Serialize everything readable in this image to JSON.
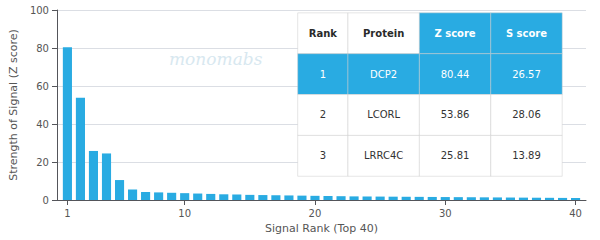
{
  "chart_data": {
    "type": "bar",
    "xlabel": "Signal Rank (Top 40)",
    "ylabel": "Strength of Signal (Z score)",
    "x": [
      1,
      2,
      3,
      4,
      5,
      6,
      7,
      8,
      9,
      10,
      11,
      12,
      13,
      14,
      15,
      16,
      17,
      18,
      19,
      20,
      21,
      22,
      23,
      24,
      25,
      26,
      27,
      28,
      29,
      30,
      31,
      32,
      33,
      34,
      35,
      36,
      37,
      38,
      39,
      40
    ],
    "values": [
      80.44,
      53.86,
      25.81,
      24.5,
      10.5,
      5.5,
      4.2,
      4.0,
      3.8,
      3.6,
      3.4,
      3.2,
      3.0,
      2.9,
      2.7,
      2.6,
      2.5,
      2.4,
      2.3,
      2.2,
      2.1,
      2.0,
      1.9,
      1.85,
      1.8,
      1.75,
      1.7,
      1.65,
      1.6,
      1.55,
      1.5,
      1.45,
      1.4,
      1.35,
      1.3,
      1.25,
      1.2,
      1.15,
      1.1,
      1.05
    ],
    "color": "#29ABE2",
    "xlim": [
      0.2,
      40.8
    ],
    "xticks": [
      1,
      10,
      20,
      30,
      40
    ],
    "ylim": [
      0,
      100
    ],
    "yticks": [
      0,
      20,
      40,
      60,
      80,
      100
    ],
    "grid": true,
    "annotations": [
      "monomabs"
    ],
    "table": [
      [
        "Rank",
        "Protein",
        "Z score",
        "S score"
      ],
      [
        "1",
        "DCP2",
        "80.44",
        "26.57"
      ],
      [
        "2",
        "LCORL",
        "53.86",
        "28.06"
      ],
      [
        "3",
        "LRRC4C",
        "25.81",
        "13.89"
      ]
    ]
  }
}
